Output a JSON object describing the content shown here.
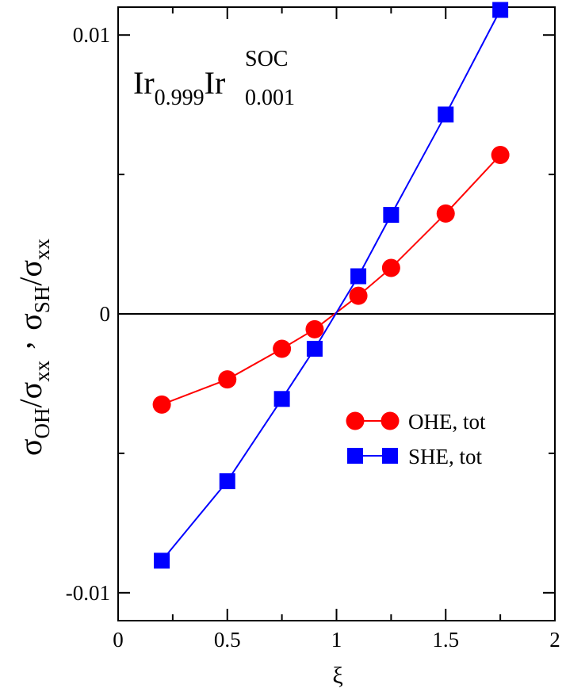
{
  "chart_data": {
    "type": "line",
    "title": "",
    "annotation": {
      "base": "Ir",
      "sub1": "0.999",
      "base2": "Ir",
      "sub2": "0.001",
      "sup2": "SOC"
    },
    "xlabel": "ξ",
    "ylabel": {
      "p1_sigma": "σ",
      "p1_sub": "OH",
      "slash1": "/",
      "p2_sigma": "σ",
      "p2_sub": "xx",
      "comma": ",",
      "p3_sigma": "σ",
      "p3_sub": "SH",
      "slash2": "/",
      "p4_sigma": "σ",
      "p4_sub": "xx"
    },
    "xlim": [
      0,
      2
    ],
    "ylim": [
      -0.011,
      0.011
    ],
    "xticks": [
      {
        "value": 0,
        "label": "0"
      },
      {
        "value": 0.5,
        "label": "0.5"
      },
      {
        "value": 1,
        "label": "1"
      },
      {
        "value": 1.5,
        "label": "1.5"
      },
      {
        "value": 2,
        "label": "2"
      }
    ],
    "yticks": [
      {
        "value": -0.01,
        "label": "-0.01"
      },
      {
        "value": 0,
        "label": "0"
      },
      {
        "value": 0.01,
        "label": "0.01"
      }
    ],
    "yminor_ticks": [
      -0.005,
      0.005
    ],
    "zero_line": true,
    "legend_position": "lower-right",
    "series": [
      {
        "name": "OHE, tot",
        "color": "#ff0000",
        "marker": "circle",
        "x": [
          0.2,
          0.5,
          0.75,
          0.9,
          1.1,
          1.25,
          1.5,
          1.75
        ],
        "y": [
          -0.00325,
          -0.00235,
          -0.00125,
          -0.00055,
          0.00065,
          0.00165,
          0.0036,
          0.0057
        ]
      },
      {
        "name": "SHE, tot",
        "color": "#0000ff",
        "marker": "square",
        "x": [
          0.2,
          0.5,
          0.75,
          0.9,
          1.1,
          1.25,
          1.5,
          1.75
        ],
        "y": [
          -0.00885,
          -0.006,
          -0.00305,
          -0.00125,
          0.00135,
          0.00355,
          0.00715,
          0.0109
        ]
      }
    ]
  }
}
